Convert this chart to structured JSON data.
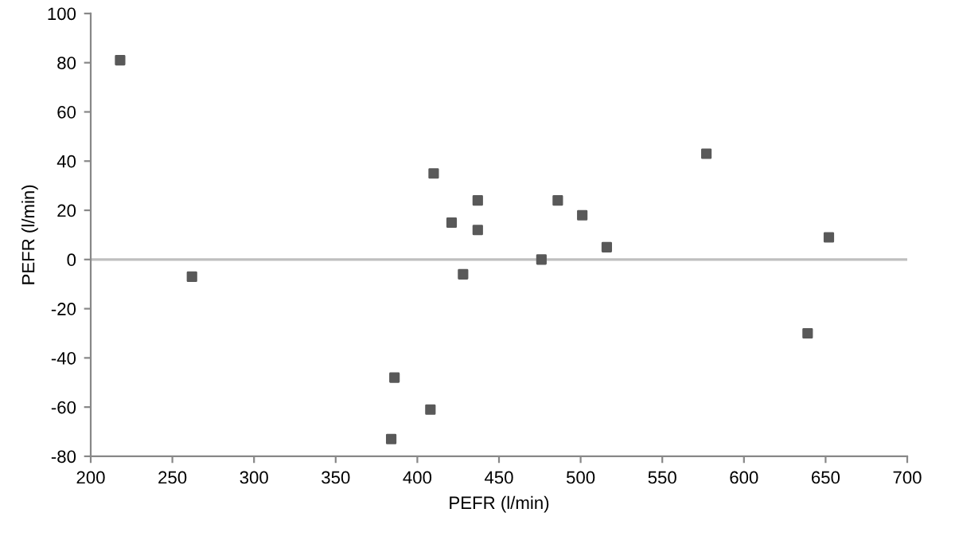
{
  "chart_data": {
    "type": "scatter",
    "xlabel": "PEFR (l/min)",
    "ylabel": "PEFR (l/min)",
    "x": [
      218,
      262,
      384,
      386,
      408,
      410,
      421,
      428,
      437,
      437,
      476,
      486,
      501,
      516,
      577,
      639,
      652
    ],
    "series": [
      {
        "color": "#595959",
        "values": [
          81,
          -7,
          -73,
          -48,
          -61,
          35,
          15,
          -6,
          24,
          12,
          0,
          24,
          18,
          5,
          43,
          -30,
          9
        ]
      }
    ],
    "marker": "square",
    "xlim": [
      200,
      700
    ],
    "ylim": [
      -80,
      100
    ],
    "xticks": [
      200,
      250,
      300,
      350,
      400,
      450,
      500,
      550,
      600,
      650,
      700
    ],
    "yticks": [
      -80,
      -60,
      -40,
      -20,
      0,
      20,
      40,
      60,
      80,
      100
    ],
    "ref_lines": [
      {
        "axis": "y",
        "value": 0,
        "color": "#bfbfbf"
      }
    ],
    "grid": false,
    "legend": false
  }
}
